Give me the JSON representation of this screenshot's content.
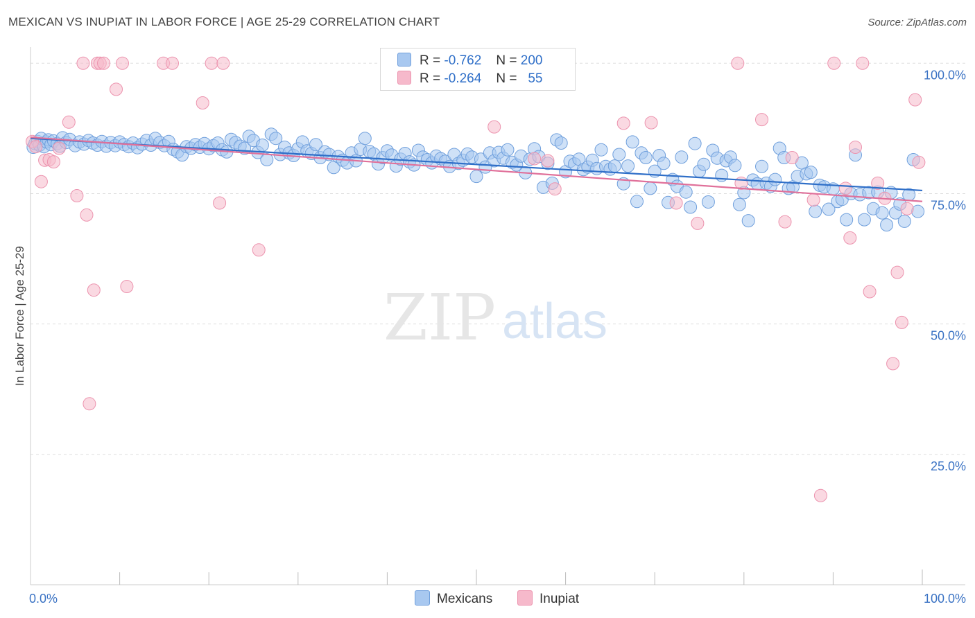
{
  "header": {
    "title": "MEXICAN VS INUPIAT IN LABOR FORCE | AGE 25-29 CORRELATION CHART",
    "source": "Source: ZipAtlas.com"
  },
  "watermark": {
    "zip": "ZIP",
    "atlas": "atlas"
  },
  "legend": {
    "r_label": "R =",
    "n_label": "N =",
    "rows": [
      {
        "r": "-0.762",
        "n": "200",
        "color": "#a8c8f0"
      },
      {
        "r": "-0.264",
        "n": "55",
        "color": "#f6b9cb"
      }
    ]
  },
  "bottom_legend": [
    {
      "label": "Mexicans",
      "color": "#a8c8f0"
    },
    {
      "label": "Inupiat",
      "color": "#f6b9cb"
    }
  ],
  "chart_data": {
    "type": "scatter",
    "ylabel": "In Labor Force | Age 25-29",
    "xlim": [
      0,
      100
    ],
    "ylim": [
      0,
      100
    ],
    "x_tick_labels": [
      {
        "value": 0,
        "label": "0.0%"
      },
      {
        "value": 100,
        "label": "100.0%"
      }
    ],
    "y_tick_labels": [
      {
        "value": 100,
        "label": "100.0%"
      },
      {
        "value": 75,
        "label": "75.0%"
      },
      {
        "value": 50,
        "label": "50.0%"
      },
      {
        "value": 25,
        "label": "25.0%"
      }
    ],
    "grid": true,
    "series": [
      {
        "name": "Mexicans",
        "color": "#a8c8f0",
        "stroke": "#6f9fdc",
        "line_color": "#2f6fc8",
        "trend": {
          "x": [
            0,
            100
          ],
          "y": [
            85.6,
            75.6
          ]
        },
        "points": [
          [
            0.3,
            83.9
          ],
          [
            0.5,
            84.6
          ],
          [
            0.8,
            85.0
          ],
          [
            1.0,
            84.3
          ],
          [
            1.2,
            85.6
          ],
          [
            1.5,
            84.0
          ],
          [
            1.8,
            84.9
          ],
          [
            2.0,
            85.3
          ],
          [
            2.3,
            84.4
          ],
          [
            2.6,
            85.1
          ],
          [
            3.0,
            84.6
          ],
          [
            3.3,
            84.1
          ],
          [
            3.6,
            85.7
          ],
          [
            4.0,
            84.8
          ],
          [
            4.4,
            85.4
          ],
          [
            5.0,
            84.2
          ],
          [
            5.5,
            84.9
          ],
          [
            6.0,
            84.5
          ],
          [
            6.5,
            85.2
          ],
          [
            7.0,
            84.7
          ],
          [
            7.5,
            84.3
          ],
          [
            8.0,
            85.0
          ],
          [
            8.5,
            84.1
          ],
          [
            9.0,
            84.8
          ],
          [
            9.5,
            84.2
          ],
          [
            10.0,
            84.9
          ],
          [
            10.5,
            84.4
          ],
          [
            11.0,
            84.0
          ],
          [
            11.5,
            84.7
          ],
          [
            12.0,
            83.8
          ],
          [
            12.5,
            84.5
          ],
          [
            13.0,
            85.2
          ],
          [
            13.5,
            84.3
          ],
          [
            14.0,
            85.6
          ],
          [
            14.5,
            84.8
          ],
          [
            15.0,
            84.2
          ],
          [
            15.5,
            85.0
          ],
          [
            16.0,
            83.5
          ],
          [
            16.5,
            83.0
          ],
          [
            17.0,
            82.4
          ],
          [
            17.5,
            84.0
          ],
          [
            18.0,
            83.7
          ],
          [
            18.5,
            84.4
          ],
          [
            19.0,
            83.9
          ],
          [
            19.5,
            84.6
          ],
          [
            20.0,
            83.6
          ],
          [
            20.5,
            84.2
          ],
          [
            21.0,
            84.7
          ],
          [
            21.5,
            83.4
          ],
          [
            22.0,
            83.0
          ],
          [
            22.5,
            85.4
          ],
          [
            23.0,
            84.8
          ],
          [
            23.5,
            84.1
          ],
          [
            24.0,
            83.7
          ],
          [
            24.5,
            86.0
          ],
          [
            25.0,
            85.2
          ],
          [
            25.5,
            82.9
          ],
          [
            26.0,
            84.3
          ],
          [
            26.5,
            81.5
          ],
          [
            27.0,
            86.4
          ],
          [
            27.5,
            85.6
          ],
          [
            28.0,
            82.5
          ],
          [
            28.5,
            83.9
          ],
          [
            29.0,
            82.8
          ],
          [
            29.5,
            82.3
          ],
          [
            30.0,
            83.6
          ],
          [
            30.5,
            84.9
          ],
          [
            31.0,
            83.2
          ],
          [
            31.5,
            82.7
          ],
          [
            32.0,
            84.4
          ],
          [
            32.5,
            81.9
          ],
          [
            33.0,
            83.0
          ],
          [
            33.5,
            82.5
          ],
          [
            34.0,
            80.0
          ],
          [
            34.5,
            82.1
          ],
          [
            35.0,
            81.4
          ],
          [
            35.5,
            80.9
          ],
          [
            36.0,
            82.8
          ],
          [
            36.5,
            81.3
          ],
          [
            37.0,
            83.5
          ],
          [
            37.5,
            85.6
          ],
          [
            38.0,
            83.1
          ],
          [
            38.5,
            82.6
          ],
          [
            39.0,
            80.7
          ],
          [
            39.5,
            81.9
          ],
          [
            40.0,
            83.2
          ],
          [
            40.5,
            82.4
          ],
          [
            41.0,
            80.3
          ],
          [
            41.5,
            81.6
          ],
          [
            42.0,
            82.7
          ],
          [
            42.5,
            81.1
          ],
          [
            43.0,
            80.5
          ],
          [
            43.5,
            83.3
          ],
          [
            44.0,
            82.0
          ],
          [
            44.5,
            81.5
          ],
          [
            45.0,
            80.9
          ],
          [
            45.5,
            82.2
          ],
          [
            46.0,
            81.7
          ],
          [
            46.5,
            81.2
          ],
          [
            47.0,
            80.2
          ],
          [
            47.5,
            82.5
          ],
          [
            48.0,
            80.8
          ],
          [
            48.5,
            81.4
          ],
          [
            49.0,
            82.6
          ],
          [
            49.5,
            82.0
          ],
          [
            50.0,
            78.3
          ],
          [
            50.5,
            81.6
          ],
          [
            51.0,
            80.1
          ],
          [
            51.5,
            82.8
          ],
          [
            52.0,
            81.3
          ],
          [
            52.5,
            82.9
          ],
          [
            53.0,
            81.8
          ],
          [
            53.5,
            83.4
          ],
          [
            54.0,
            81.0
          ],
          [
            54.5,
            80.5
          ],
          [
            55.0,
            82.2
          ],
          [
            55.5,
            79.0
          ],
          [
            56.0,
            81.6
          ],
          [
            56.5,
            83.6
          ],
          [
            57.0,
            82.1
          ],
          [
            57.5,
            76.2
          ],
          [
            58.0,
            80.8
          ],
          [
            58.5,
            77.0
          ],
          [
            59.0,
            85.3
          ],
          [
            59.5,
            84.7
          ],
          [
            60.0,
            79.2
          ],
          [
            60.5,
            81.2
          ],
          [
            61.0,
            80.7
          ],
          [
            61.5,
            81.6
          ],
          [
            62.0,
            79.6
          ],
          [
            62.5,
            80.1
          ],
          [
            63.0,
            81.4
          ],
          [
            63.5,
            79.8
          ],
          [
            64.0,
            83.4
          ],
          [
            64.5,
            80.2
          ],
          [
            65.0,
            79.7
          ],
          [
            65.5,
            80.3
          ],
          [
            66.0,
            82.5
          ],
          [
            66.5,
            76.9
          ],
          [
            67.0,
            80.3
          ],
          [
            67.5,
            84.9
          ],
          [
            68.0,
            73.5
          ],
          [
            68.5,
            82.8
          ],
          [
            69.0,
            81.9
          ],
          [
            69.5,
            76.0
          ],
          [
            70.0,
            79.3
          ],
          [
            70.5,
            82.3
          ],
          [
            71.0,
            80.8
          ],
          [
            71.5,
            73.3
          ],
          [
            72.0,
            77.7
          ],
          [
            72.5,
            76.4
          ],
          [
            73.0,
            82.0
          ],
          [
            73.5,
            75.3
          ],
          [
            74.0,
            72.4
          ],
          [
            74.5,
            84.6
          ],
          [
            75.0,
            79.3
          ],
          [
            75.5,
            80.6
          ],
          [
            76.0,
            73.4
          ],
          [
            76.5,
            83.3
          ],
          [
            77.0,
            81.8
          ],
          [
            77.5,
            78.5
          ],
          [
            78.0,
            81.3
          ],
          [
            78.5,
            82.0
          ],
          [
            79.0,
            80.4
          ],
          [
            79.5,
            72.9
          ],
          [
            80.0,
            75.2
          ],
          [
            80.5,
            69.8
          ],
          [
            81.0,
            77.6
          ],
          [
            81.5,
            76.9
          ],
          [
            82.0,
            80.2
          ],
          [
            82.5,
            77.0
          ],
          [
            83.0,
            76.4
          ],
          [
            83.5,
            77.7
          ],
          [
            84.0,
            83.7
          ],
          [
            84.5,
            81.9
          ],
          [
            85.0,
            76.0
          ],
          [
            85.5,
            76.3
          ],
          [
            86.0,
            78.3
          ],
          [
            86.5,
            80.9
          ],
          [
            87.0,
            78.8
          ],
          [
            87.5,
            79.1
          ],
          [
            88.0,
            71.6
          ],
          [
            88.5,
            76.6
          ],
          [
            89.0,
            76.3
          ],
          [
            89.5,
            72.0
          ],
          [
            90.0,
            75.9
          ],
          [
            90.5,
            73.5
          ],
          [
            91.0,
            73.9
          ],
          [
            91.5,
            70.0
          ],
          [
            92.0,
            75.0
          ],
          [
            92.5,
            82.4
          ],
          [
            93.0,
            74.8
          ],
          [
            93.5,
            70.0
          ],
          [
            94.0,
            75.2
          ],
          [
            94.5,
            72.1
          ],
          [
            95.0,
            75.3
          ],
          [
            95.5,
            71.3
          ],
          [
            96.0,
            69.0
          ],
          [
            96.5,
            75.2
          ],
          [
            97.0,
            71.3
          ],
          [
            97.5,
            73.0
          ],
          [
            98.0,
            69.7
          ],
          [
            98.5,
            74.8
          ],
          [
            99.0,
            81.5
          ],
          [
            99.5,
            71.6
          ]
        ]
      },
      {
        "name": "Inupiat",
        "color": "#f6b9cb",
        "stroke": "#ec93ae",
        "line_color": "#e0709a",
        "trend": {
          "x": [
            0,
            100
          ],
          "y": [
            85.8,
            73.5
          ]
        },
        "points": [
          [
            0.2,
            85.0
          ],
          [
            0.6,
            84.0
          ],
          [
            1.2,
            77.3
          ],
          [
            1.6,
            81.4
          ],
          [
            2.1,
            81.5
          ],
          [
            2.6,
            81.1
          ],
          [
            3.2,
            83.7
          ],
          [
            4.3,
            88.7
          ],
          [
            5.2,
            74.6
          ],
          [
            5.9,
            100.0
          ],
          [
            6.3,
            70.9
          ],
          [
            6.6,
            34.7
          ],
          [
            7.1,
            56.5
          ],
          [
            7.5,
            100.0
          ],
          [
            7.8,
            100.0
          ],
          [
            8.2,
            100.0
          ],
          [
            9.6,
            95.0
          ],
          [
            10.3,
            100.0
          ],
          [
            10.8,
            57.2
          ],
          [
            14.9,
            100.0
          ],
          [
            15.9,
            100.0
          ],
          [
            19.3,
            92.4
          ],
          [
            20.3,
            100.0
          ],
          [
            21.6,
            100.0
          ],
          [
            21.2,
            73.2
          ],
          [
            25.6,
            64.2
          ],
          [
            52.0,
            87.8
          ],
          [
            56.5,
            81.7
          ],
          [
            58.0,
            81.3
          ],
          [
            58.8,
            75.9
          ],
          [
            66.5,
            88.5
          ],
          [
            69.6,
            88.6
          ],
          [
            72.4,
            73.2
          ],
          [
            74.8,
            69.3
          ],
          [
            79.3,
            100.0
          ],
          [
            79.7,
            77.0
          ],
          [
            82.0,
            89.2
          ],
          [
            84.6,
            69.6
          ],
          [
            85.4,
            81.9
          ],
          [
            87.8,
            73.8
          ],
          [
            88.6,
            17.1
          ],
          [
            90.1,
            100.0
          ],
          [
            91.4,
            76.0
          ],
          [
            91.9,
            66.5
          ],
          [
            92.5,
            83.9
          ],
          [
            93.3,
            100.0
          ],
          [
            94.1,
            56.2
          ],
          [
            95.0,
            77.0
          ],
          [
            95.8,
            74.1
          ],
          [
            96.7,
            42.4
          ],
          [
            97.2,
            59.9
          ],
          [
            97.7,
            50.3
          ],
          [
            98.3,
            72.1
          ],
          [
            99.2,
            93.0
          ],
          [
            99.6,
            81.0
          ]
        ]
      }
    ]
  }
}
